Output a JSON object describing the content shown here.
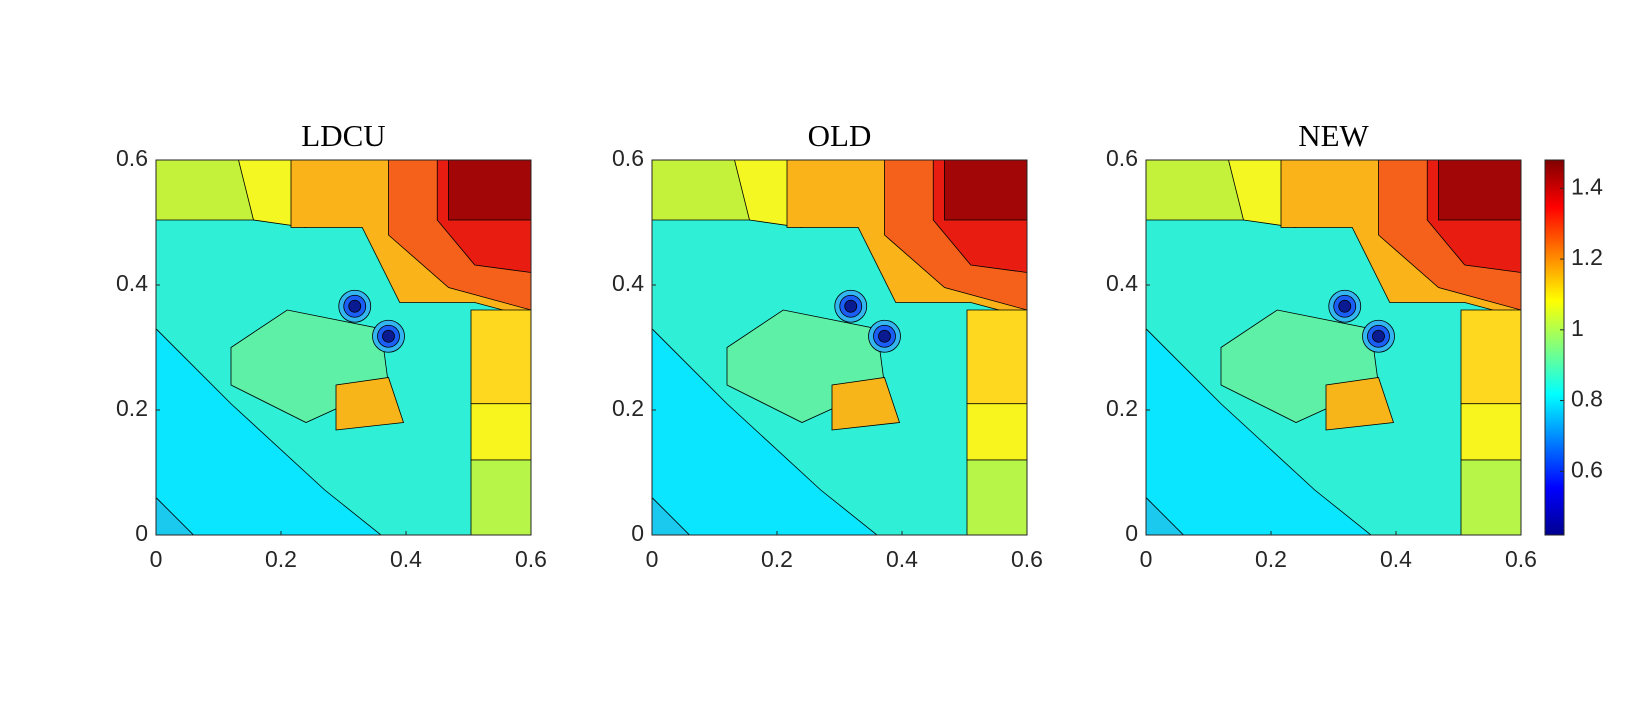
{
  "chart_data": [
    {
      "type": "contour",
      "title": "LDCU",
      "xlim": [
        0,
        0.6
      ],
      "ylim": [
        0,
        0.6
      ],
      "xticks": [
        0,
        0.2,
        0.4,
        0.6
      ],
      "yticks": [
        0,
        0.2,
        0.4,
        0.6
      ]
    },
    {
      "type": "contour",
      "title": "OLD",
      "xlim": [
        0,
        0.6
      ],
      "ylim": [
        0,
        0.6
      ],
      "xticks": [
        0,
        0.2,
        0.4,
        0.6
      ],
      "yticks": [
        0,
        0.2,
        0.4,
        0.6
      ]
    },
    {
      "type": "contour",
      "title": "NEW",
      "xlim": [
        0,
        0.6
      ],
      "ylim": [
        0,
        0.6
      ],
      "xticks": [
        0,
        0.2,
        0.4,
        0.6
      ],
      "yticks": [
        0,
        0.2,
        0.4,
        0.6
      ],
      "colorbar": {
        "colormap": "jet",
        "clim": [
          0.42,
          1.48
        ],
        "ticks": [
          0.6,
          0.8,
          1,
          1.2,
          1.4
        ]
      }
    }
  ]
}
